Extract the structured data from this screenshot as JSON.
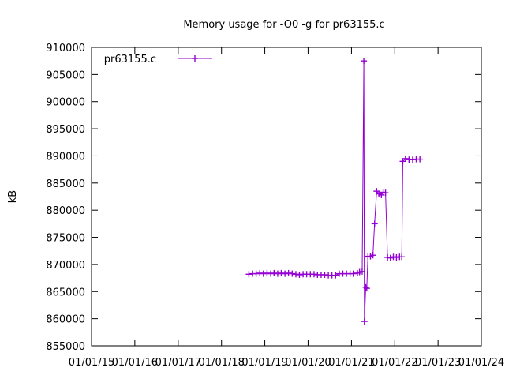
{
  "chart_data": {
    "type": "line",
    "title": "Memory usage for -O0 -g for pr63155.c",
    "xlabel": "",
    "ylabel": "kB",
    "ylim": [
      855000,
      910000
    ],
    "yticks": [
      855000,
      860000,
      865000,
      870000,
      875000,
      880000,
      885000,
      890000,
      895000,
      900000,
      905000,
      910000
    ],
    "xlim": [
      "2015-01-01",
      "2024-01-01"
    ],
    "xticks": [
      "2015-01-01",
      "2016-01-01",
      "2017-01-01",
      "2018-01-01",
      "2019-01-01",
      "2020-01-01",
      "2021-01-01",
      "2022-01-01",
      "2023-01-01",
      "2024-01-01"
    ],
    "xtick_labels": [
      "01/01/15",
      "01/01/16",
      "01/01/17",
      "01/01/18",
      "01/01/19",
      "01/01/20",
      "01/01/21",
      "01/01/22",
      "01/01/23",
      "01/01/24"
    ],
    "grid": false,
    "legend_position": "top-left",
    "color": "#9400d3",
    "series": [
      {
        "name": "pr63155.c",
        "points": [
          [
            "2018-08-20",
            868200
          ],
          [
            "2018-09-20",
            868300
          ],
          [
            "2018-10-20",
            868300
          ],
          [
            "2018-11-20",
            868400
          ],
          [
            "2018-12-20",
            868300
          ],
          [
            "2019-01-20",
            868400
          ],
          [
            "2019-02-20",
            868300
          ],
          [
            "2019-03-20",
            868400
          ],
          [
            "2019-04-20",
            868300
          ],
          [
            "2019-05-20",
            868400
          ],
          [
            "2019-06-20",
            868300
          ],
          [
            "2019-07-20",
            868400
          ],
          [
            "2019-08-20",
            868300
          ],
          [
            "2019-09-20",
            868200
          ],
          [
            "2019-10-20",
            868100
          ],
          [
            "2019-11-20",
            868200
          ],
          [
            "2019-12-20",
            868200
          ],
          [
            "2020-01-20",
            868200
          ],
          [
            "2020-02-20",
            868200
          ],
          [
            "2020-03-20",
            868100
          ],
          [
            "2020-04-20",
            868100
          ],
          [
            "2020-05-20",
            868100
          ],
          [
            "2020-06-20",
            868000
          ],
          [
            "2020-07-20",
            868000
          ],
          [
            "2020-08-20",
            868000
          ],
          [
            "2020-09-20",
            868300
          ],
          [
            "2020-10-20",
            868300
          ],
          [
            "2020-11-20",
            868300
          ],
          [
            "2020-12-20",
            868300
          ],
          [
            "2021-01-20",
            868300
          ],
          [
            "2021-02-20",
            868400
          ],
          [
            "2021-03-10",
            868600
          ],
          [
            "2021-04-01",
            868700
          ],
          [
            "2021-04-15",
            907500
          ],
          [
            "2021-04-20",
            859500
          ],
          [
            "2021-05-01",
            865800
          ],
          [
            "2021-05-10",
            865600
          ],
          [
            "2021-05-20",
            871500
          ],
          [
            "2021-06-10",
            871500
          ],
          [
            "2021-07-01",
            871700
          ],
          [
            "2021-07-15",
            877500
          ],
          [
            "2021-08-01",
            883500
          ],
          [
            "2021-08-20",
            883000
          ],
          [
            "2021-09-10",
            882800
          ],
          [
            "2021-09-25",
            883300
          ],
          [
            "2021-10-15",
            883200
          ],
          [
            "2021-11-01",
            871300
          ],
          [
            "2021-11-25",
            871200
          ],
          [
            "2021-12-20",
            871400
          ],
          [
            "2022-01-15",
            871300
          ],
          [
            "2022-02-10",
            871400
          ],
          [
            "2022-03-01",
            871400
          ],
          [
            "2022-03-10",
            889000
          ],
          [
            "2022-04-01",
            889500
          ],
          [
            "2022-05-01",
            889300
          ],
          [
            "2022-06-01",
            889300
          ],
          [
            "2022-07-01",
            889400
          ],
          [
            "2022-08-01",
            889400
          ]
        ]
      }
    ]
  }
}
